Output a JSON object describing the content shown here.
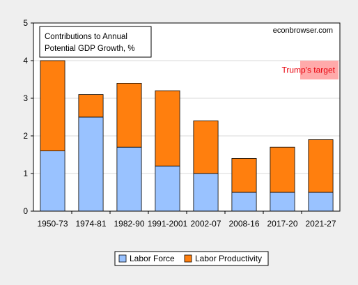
{
  "chart_data": {
    "type": "bar",
    "stacked": true,
    "categories": [
      "1950-73",
      "1974-81",
      "1982-90",
      "1991-2001",
      "2002-07",
      "2008-16",
      "2017-20",
      "2021-27"
    ],
    "series": [
      {
        "name": "Labor Force",
        "values": [
          1.6,
          2.5,
          1.7,
          1.2,
          1.0,
          0.5,
          0.5,
          0.5
        ],
        "color": "#99c2ff"
      },
      {
        "name": "Labor Productivity",
        "values": [
          2.4,
          0.6,
          1.7,
          2.0,
          1.4,
          0.9,
          1.2,
          1.4
        ],
        "color": "#ff7f0e"
      }
    ],
    "ylim": [
      0,
      5
    ],
    "yticks": [
      "0",
      "1",
      "2",
      "3",
      "4",
      "5"
    ],
    "grid": true,
    "annotation_box": {
      "line1": "Contributions to Annual",
      "line2": "Potential GDP Growth, %"
    },
    "source": "econbrowser.com",
    "target_band": {
      "label": "Trump's target",
      "y_from": 3.5,
      "y_to": 4.0,
      "color": "#ffaaaa",
      "text_color": "#e8000b"
    },
    "legend_position": "bottom-center"
  }
}
